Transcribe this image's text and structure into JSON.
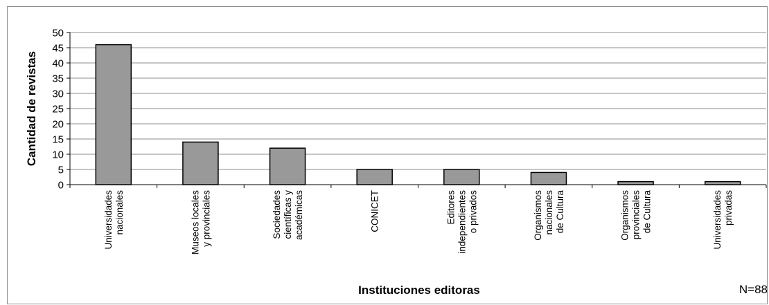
{
  "chart_data": {
    "type": "bar",
    "title": "",
    "xlabel": "Instituciones editoras",
    "ylabel": "Cantidad de revistas",
    "ylim": [
      0,
      50
    ],
    "yticks": [
      0,
      5,
      10,
      15,
      20,
      25,
      30,
      35,
      40,
      45,
      50
    ],
    "grid": true,
    "categories": [
      [
        "Universidades",
        "nacionales"
      ],
      [
        "Museos locales",
        "y provinciales"
      ],
      [
        "Sociedades",
        "científicas y",
        "académicas"
      ],
      [
        "CONICET"
      ],
      [
        "Editores",
        "independientes",
        "o privados"
      ],
      [
        "Organismos",
        "nacionales",
        "de Cultura"
      ],
      [
        "Organismos",
        "provinciales",
        "de Cultura"
      ],
      [
        "Universidades",
        "privadas"
      ]
    ],
    "values": [
      46,
      14,
      12,
      5,
      5,
      4,
      1,
      1
    ],
    "bar_color": "#999999",
    "annotation": "N=88"
  }
}
